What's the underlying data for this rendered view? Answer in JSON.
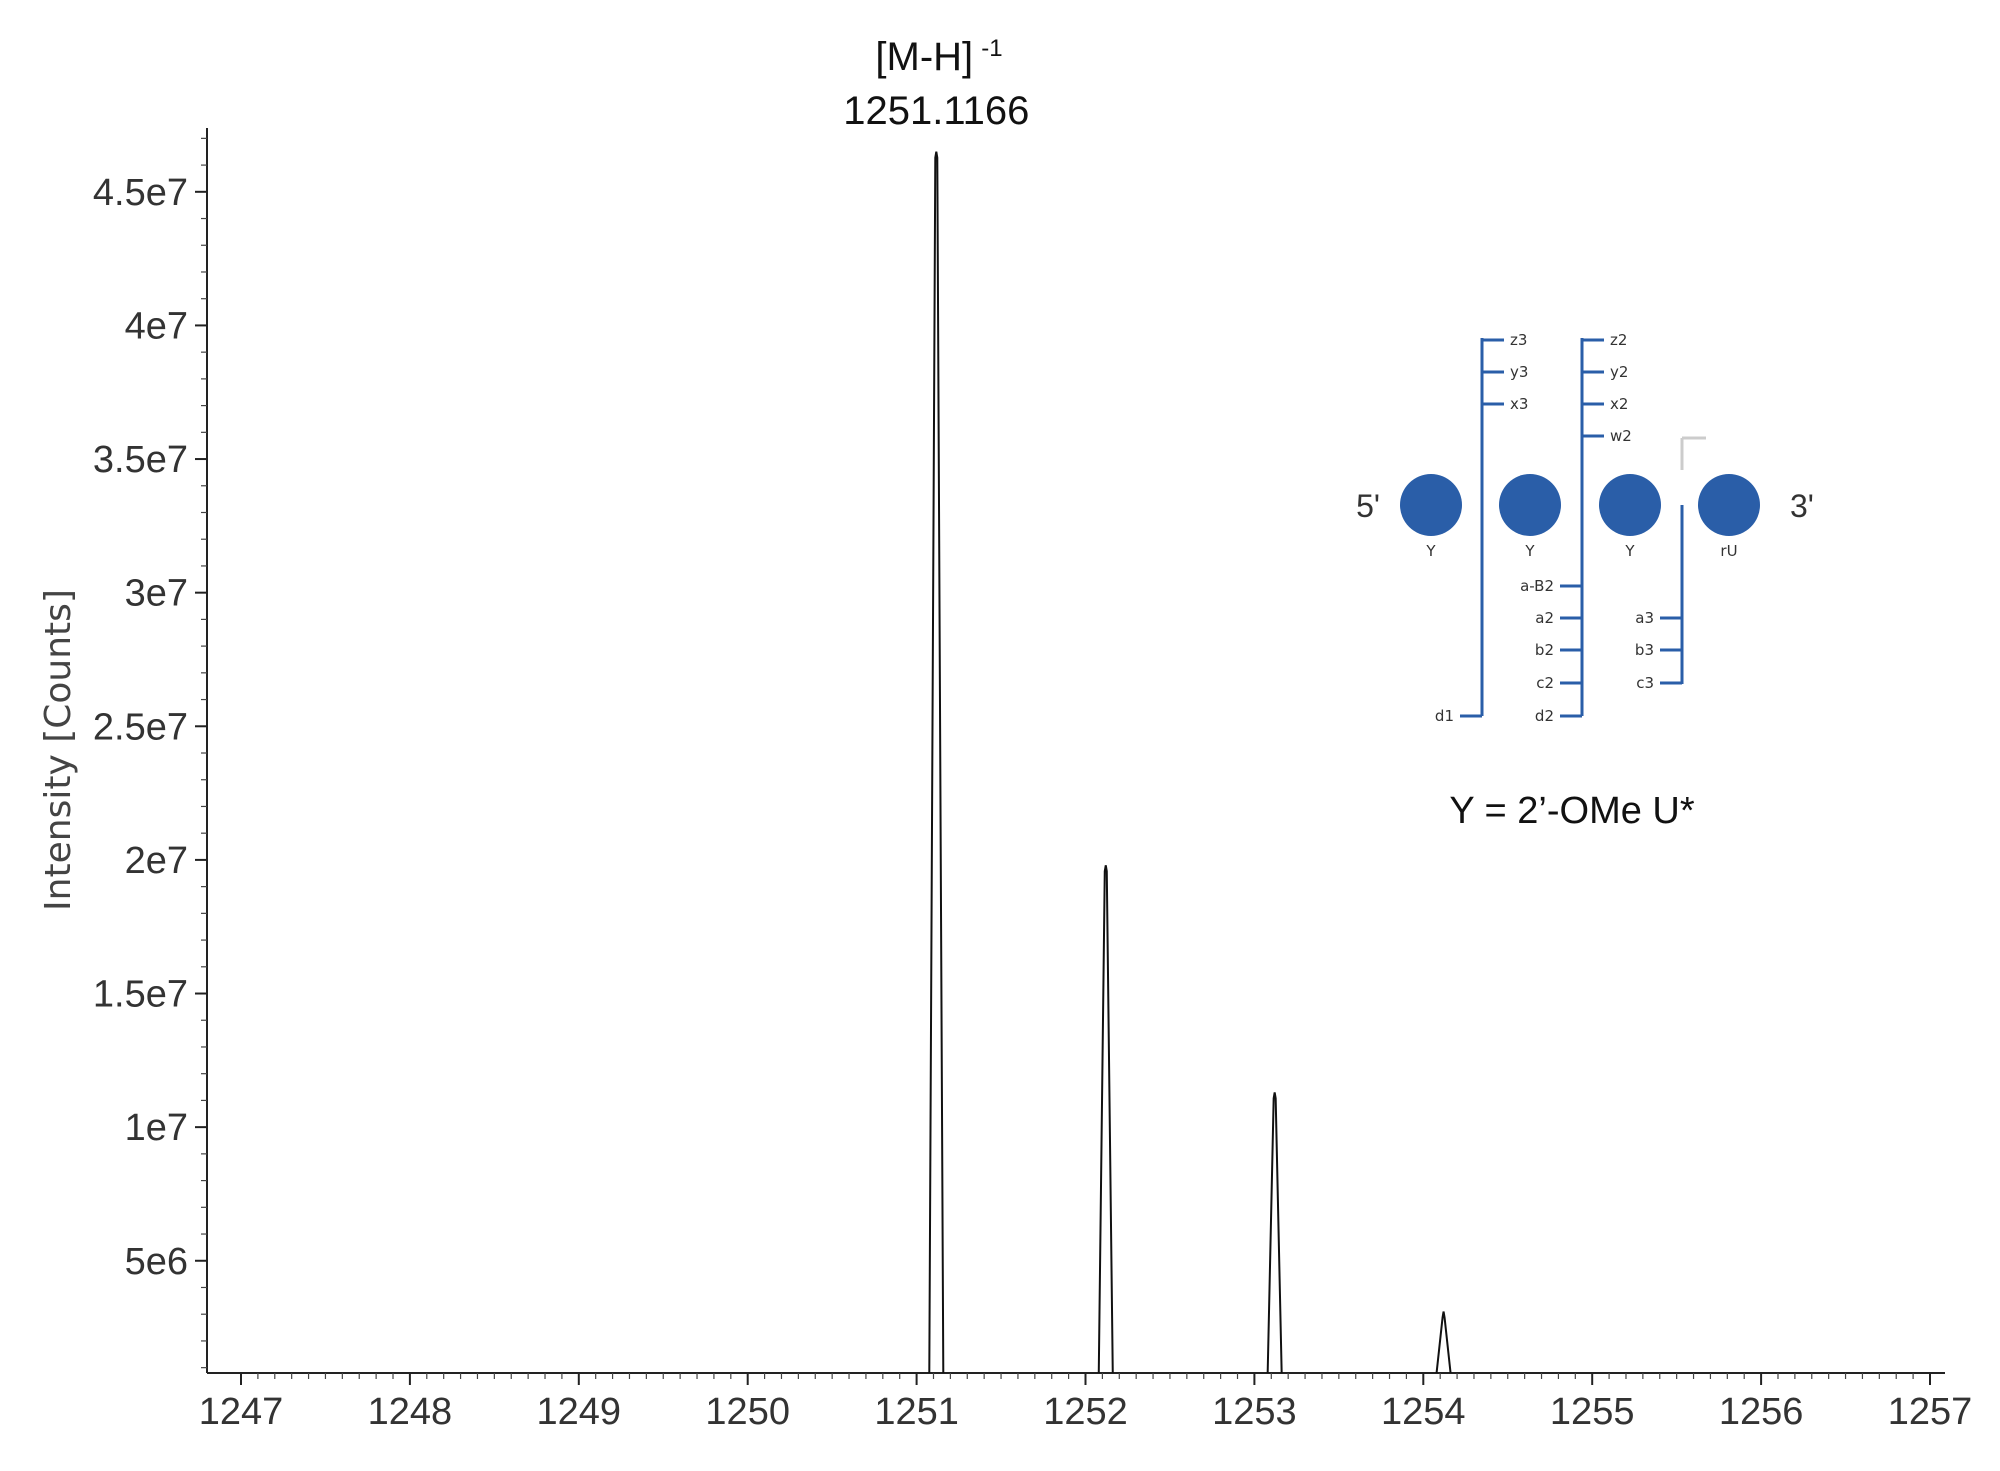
{
  "chart_data": {
    "type": "line",
    "title": "",
    "xlabel": "",
    "ylabel": "Intensity [Counts]",
    "xlim": [
      1247,
      1257
    ],
    "ylim": [
      800000,
      47500000
    ],
    "x_ticks": [
      1247,
      1248,
      1249,
      1250,
      1251,
      1252,
      1253,
      1254,
      1255,
      1256,
      1257
    ],
    "x_tick_labels": [
      "1247",
      "1248",
      "1249",
      "1250",
      "1251",
      "1252",
      "1253",
      "1254",
      "1255",
      "1256",
      "1257"
    ],
    "y_ticks": [
      5000000,
      10000000,
      15000000,
      20000000,
      25000000,
      30000000,
      35000000,
      40000000,
      45000000
    ],
    "y_tick_labels": [
      "5e6",
      "1e7",
      "1.5e7",
      "2e7",
      "2.5e7",
      "3e7",
      "3.5e7",
      "4e7",
      "4.5e7"
    ],
    "grid": false,
    "series": [
      {
        "peaks": [
          {
            "x": 1251.1166,
            "y": 46500000
          },
          {
            "x": 1252.12,
            "y": 19800000
          },
          {
            "x": 1253.12,
            "y": 11300000
          },
          {
            "x": 1254.12,
            "y": 3100000
          }
        ]
      }
    ],
    "annotations": [
      {
        "x": 1251.1166,
        "line1": "[M-H]",
        "superscript": "-1",
        "line2": "1251.1166"
      }
    ]
  },
  "inset": {
    "five_prime": "5'",
    "three_prime": "3'",
    "color": "#2a5ea8",
    "residues": [
      "Y",
      "Y",
      "Y",
      "rU"
    ],
    "top_left_group": [
      "z3",
      "y3",
      "x3"
    ],
    "top_right_group": [
      "z2",
      "y2",
      "x2",
      "w2"
    ],
    "bottom_d1": "d1",
    "bottom_mid_group": [
      "a-B2",
      "a2",
      "b2",
      "c2",
      "d2"
    ],
    "bottom_right_group": [
      "a3",
      "b3",
      "c3"
    ],
    "legend": "Y = 2’-OMe U*"
  }
}
